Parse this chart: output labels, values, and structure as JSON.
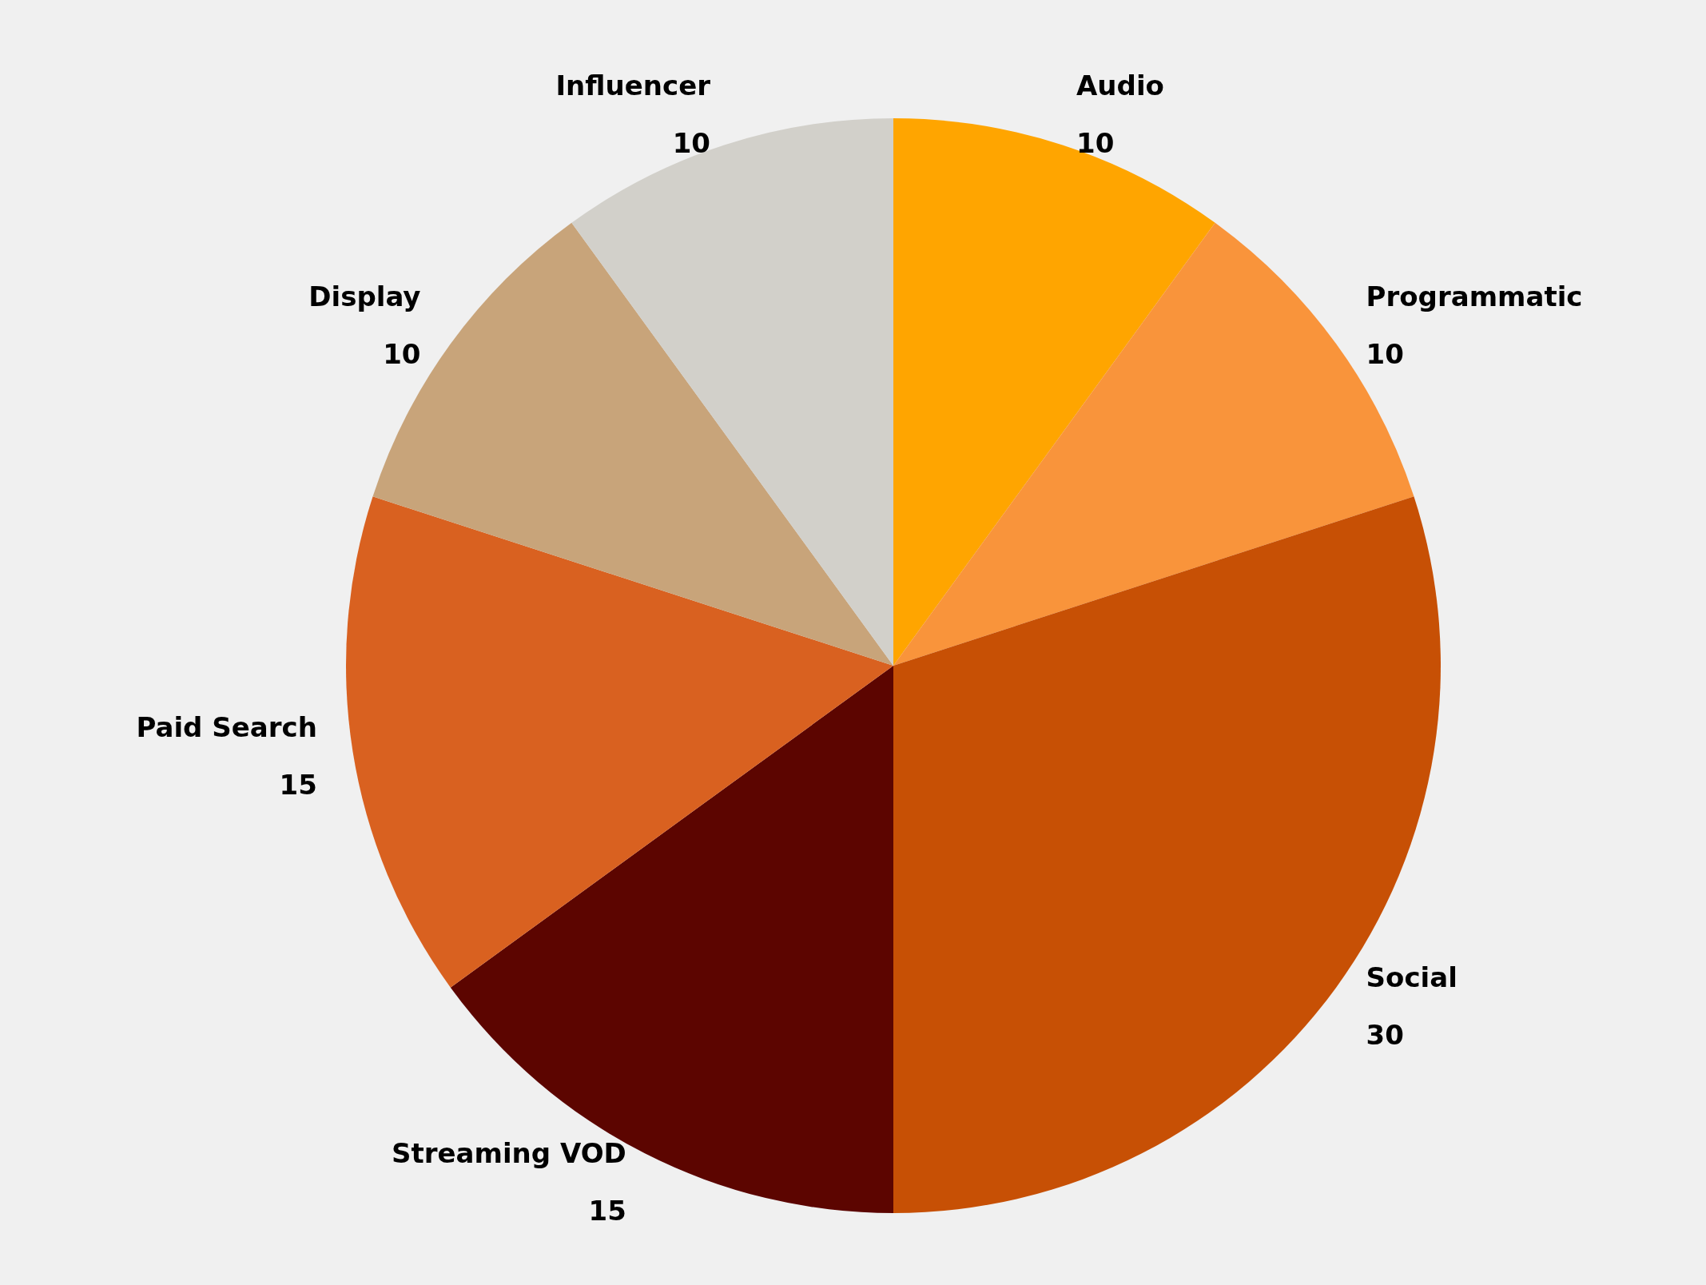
{
  "chart_data": {
    "type": "pie",
    "categories": [
      "Audio",
      "Programmatic",
      "Social",
      "Streaming VOD",
      "Paid Search",
      "Display",
      "Influencer"
    ],
    "values": [
      10,
      10,
      30,
      15,
      15,
      10,
      10
    ],
    "colors": [
      "#ffa500",
      "#f9943b",
      "#c75005",
      "#5c0500",
      "#d96120",
      "#c8a47a",
      "#d2d0ca"
    ],
    "data_labels": true,
    "legend": false
  }
}
